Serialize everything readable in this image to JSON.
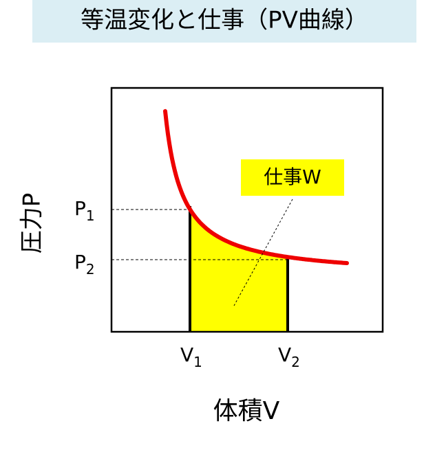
{
  "header": {
    "title": "等温変化と仕事（PV曲線）"
  },
  "axes": {
    "y_label": "圧力P",
    "x_label": "体積V"
  },
  "points": [
    {
      "axis": "P",
      "symbol": "P",
      "sub": "1"
    },
    {
      "axis": "P",
      "symbol": "P",
      "sub": "2"
    },
    {
      "axis": "V",
      "symbol": "V",
      "sub": "1"
    },
    {
      "axis": "V",
      "symbol": "V",
      "sub": "2"
    }
  ],
  "annotation": "仕事W"
}
